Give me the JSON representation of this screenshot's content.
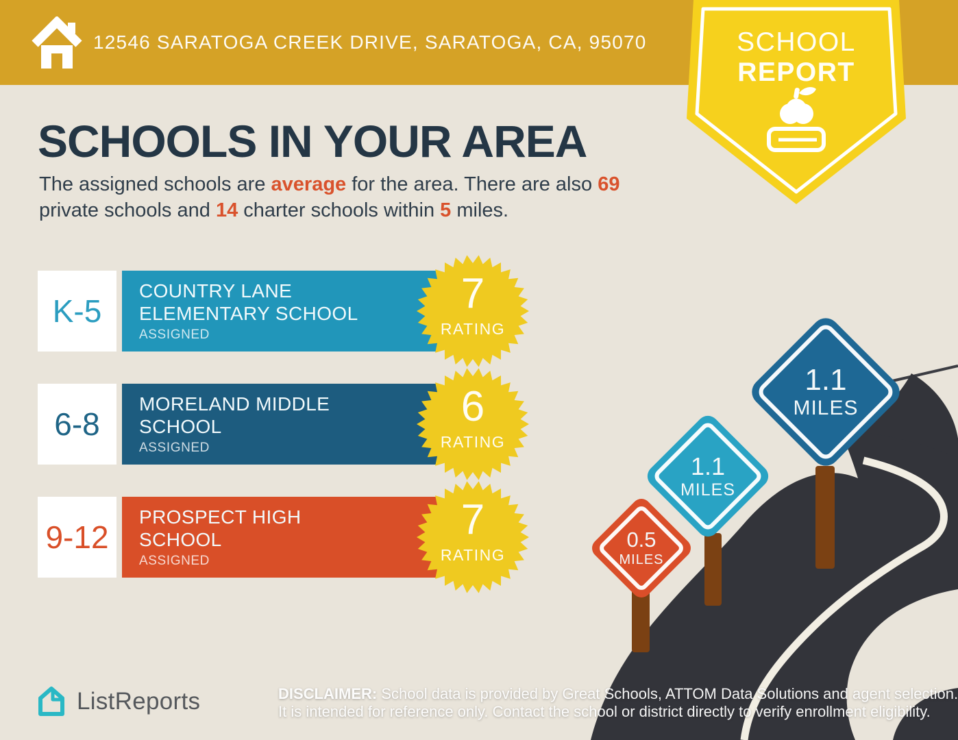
{
  "colors": {
    "background_beige": "#e9e4da",
    "header_gold": "#d5a226",
    "badge_yellow": "#f6d11d",
    "title_navy": "#243645",
    "accent_orange": "#d9522c",
    "row_teal": "#2196ba",
    "row_navy": "#1d5c7f",
    "row_orange": "#d94f28",
    "starburst_yellow": "#efca20",
    "sign_dark_blue": "#1e6895",
    "sign_teal": "#29a3c4",
    "sign_orange": "#da4e29",
    "road_dark": "#33343a",
    "post_brown": "#7b4113",
    "logo_teal": "#2ab8c5"
  },
  "header": {
    "address": "12546 SARATOGA CREEK DRIVE, SARATOGA, CA, 95070",
    "badge": {
      "line1": "SCHOOL",
      "line2": "REPORT"
    }
  },
  "main": {
    "title": "SCHOOLS IN YOUR AREA",
    "intro": {
      "p1": "The assigned schools are ",
      "h1": "average",
      "p2": " for the area. There are also ",
      "h2": "69",
      "p3": " private schools and ",
      "h3": "14",
      "p4": " charter schools within ",
      "h4": "5",
      "p5": " miles."
    }
  },
  "schools": [
    {
      "grades": "K-5",
      "name_line1": "COUNTRY LANE",
      "name_line2": "ELEMENTARY SCHOOL",
      "status": "ASSIGNED",
      "rating": "7",
      "rating_label": "RATING"
    },
    {
      "grades": "6-8",
      "name_line1": "MORELAND MIDDLE",
      "name_line2": "SCHOOL",
      "status": "ASSIGNED",
      "rating": "6",
      "rating_label": "RATING"
    },
    {
      "grades": "9-12",
      "name_line1": "PROSPECT HIGH",
      "name_line2": "SCHOOL",
      "status": "ASSIGNED",
      "rating": "7",
      "rating_label": "RATING"
    }
  ],
  "signs": [
    {
      "distance": "1.1",
      "unit": "MILES"
    },
    {
      "distance": "1.1",
      "unit": "MILES"
    },
    {
      "distance": "0.5",
      "unit": "MILES"
    }
  ],
  "footer": {
    "brand": "ListReports",
    "disclaimer_label": "DISCLAIMER:",
    "disclaimer_rest": " School data is provided by Great Schools, ATTOM Data Solutions and agent selection.",
    "disclaimer_line2": "It is intended for reference only. Contact the school or district directly to verify enrollment eligibility."
  }
}
